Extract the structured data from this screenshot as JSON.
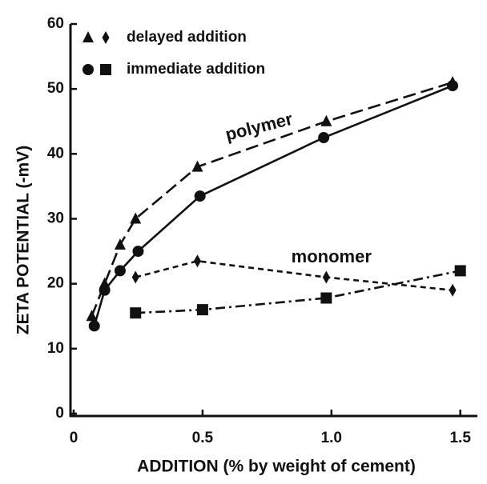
{
  "chart_data": {
    "type": "line",
    "xlabel": "ADDITION (% by weight of cement)",
    "ylabel": "ZETA POTENTIAL (-mV)",
    "xlim": [
      0,
      1.56
    ],
    "ylim": [
      0,
      60
    ],
    "xticks": [
      0,
      0.5,
      {
        "value": 1,
        "label": "1.0"
      },
      1.5
    ],
    "yticks": [
      0,
      10,
      20,
      30,
      40,
      50,
      60
    ],
    "annotations": [
      {
        "text": "polymer",
        "x": 0.72,
        "y": 44
      },
      {
        "text": "monomer",
        "x": 1.0,
        "y": 24
      }
    ],
    "series": [
      {
        "name": "delayed addition",
        "marker": "triangle",
        "line_style": "long-dash",
        "color": "#111",
        "x": [
          0.07,
          0.12,
          0.18,
          0.24,
          0.48,
          0.98,
          1.47
        ],
        "values": [
          15,
          20,
          26,
          30,
          38,
          45,
          51
        ]
      },
      {
        "name": "immediate addition",
        "marker": "circle",
        "line_style": "solid",
        "color": "#111",
        "x": [
          0.08,
          0.12,
          0.18,
          0.25,
          0.49,
          0.97,
          1.47
        ],
        "values": [
          13.5,
          19,
          22,
          25,
          33.5,
          42.5,
          50.5
        ]
      },
      {
        "name": "delayed addition",
        "marker": "diamond",
        "line_style": "short-dash",
        "color": "#111",
        "x": [
          0.24,
          0.48,
          0.98,
          1.47
        ],
        "values": [
          21,
          23.5,
          21,
          19
        ]
      },
      {
        "name": "immediate addition",
        "marker": "square",
        "line_style": "dash-dot",
        "color": "#111",
        "x": [
          0.24,
          0.5,
          0.98,
          1.5
        ],
        "values": [
          15.5,
          16,
          17.8,
          22
        ]
      }
    ]
  }
}
